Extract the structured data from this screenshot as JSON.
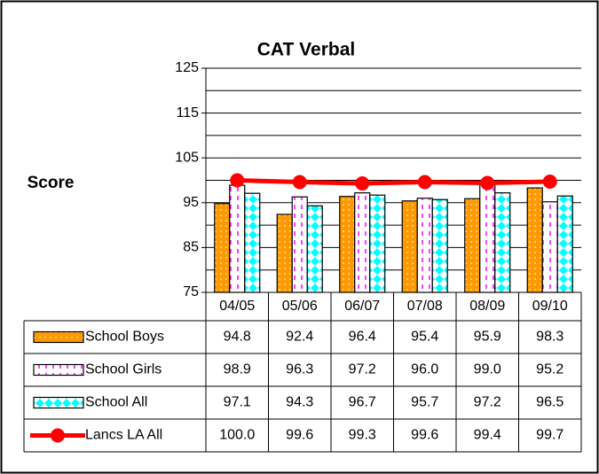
{
  "chart_data": {
    "type": "bar",
    "title": "CAT Verbal",
    "y_label": "Score",
    "categories": [
      "04/05",
      "05/06",
      "06/07",
      "07/08",
      "08/09",
      "09/10"
    ],
    "ylim": [
      75,
      125
    ],
    "yticks": [
      75,
      85,
      95,
      105,
      115,
      125
    ],
    "minor_yticks": [
      80,
      90,
      100,
      110,
      120
    ],
    "grid": true,
    "series": [
      {
        "name": "School Boys",
        "type": "bar",
        "color": "#ff9900",
        "values": [
          94.8,
          92.4,
          96.4,
          95.4,
          95.9,
          98.3
        ],
        "value_labels": [
          "94.8",
          "92.4",
          "96.4",
          "95.4",
          "95.9",
          "98.3"
        ]
      },
      {
        "name": "School Girls",
        "type": "bar",
        "color": "#ff00ff",
        "values": [
          98.9,
          96.3,
          97.2,
          96.0,
          99.0,
          95.2
        ],
        "value_labels": [
          "98.9",
          "96.3",
          "97.2",
          "96.0",
          "99.0",
          "95.2"
        ]
      },
      {
        "name": "School All",
        "type": "bar",
        "color": "#00ffff",
        "values": [
          97.1,
          94.3,
          96.7,
          95.7,
          97.2,
          96.5
        ],
        "value_labels": [
          "97.1",
          "94.3",
          "96.7",
          "95.7",
          "97.2",
          "96.5"
        ]
      },
      {
        "name": "Lancs LA All",
        "type": "line",
        "color": "#ff0000",
        "values": [
          100.0,
          99.6,
          99.3,
          99.6,
          99.4,
          99.7
        ],
        "value_labels": [
          "100.0",
          "99.6",
          "99.3",
          "99.6",
          "99.4",
          "99.7"
        ]
      }
    ]
  }
}
